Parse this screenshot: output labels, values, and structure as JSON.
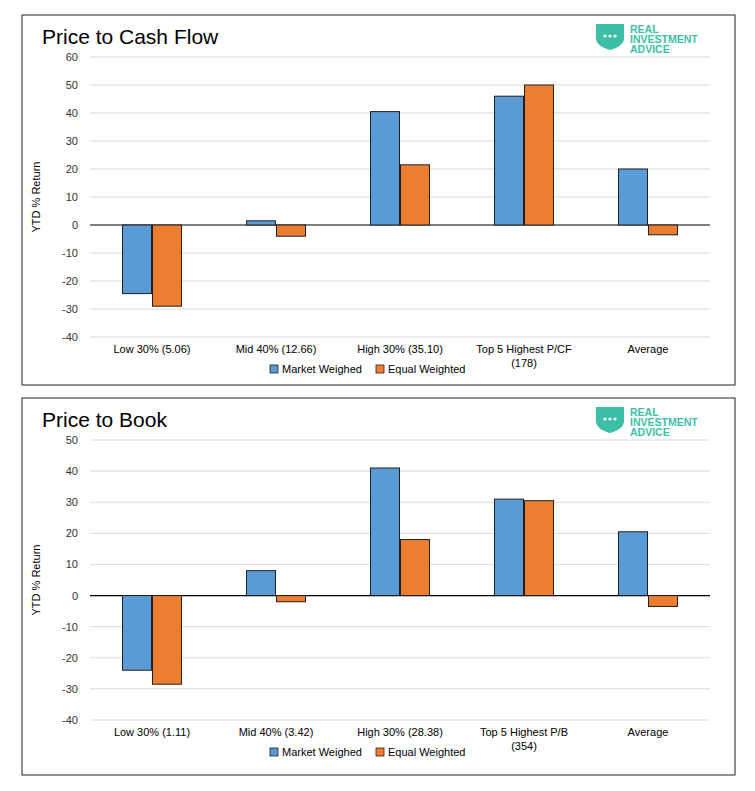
{
  "chart_data": [
    {
      "type": "bar",
      "title": "Price to Cash Flow",
      "y_label": "YTD % Return",
      "annotations": [
        "REAL",
        "INVESTMENT",
        "ADVICE"
      ],
      "categories": [
        "Low 30% (5.06)",
        "Mid 40% (12.66)",
        "High 30% (35.10)",
        "Top 5 Highest P/CF\n(178)",
        "Average"
      ],
      "series": [
        {
          "name": "Market Weighed",
          "color": "#5b9bd5",
          "values": [
            -24.5,
            1.5,
            40.5,
            46,
            20
          ]
        },
        {
          "name": "Equal Weighted",
          "color": "#ed7d31",
          "values": [
            -29,
            -4,
            21.5,
            50,
            -3.5
          ]
        }
      ],
      "ylim": [
        -40,
        60
      ],
      "yticks": [
        -40,
        -30,
        -20,
        -10,
        0,
        10,
        20,
        30,
        40,
        50,
        60
      ],
      "grid": true,
      "legend": "bottom"
    },
    {
      "type": "bar",
      "title": "Price to Book",
      "y_label": "YTD % Return",
      "annotations": [
        "REAL",
        "INVESTMENT",
        "ADVICE"
      ],
      "categories": [
        "Low 30% (1.11)",
        "Mid 40% (3.42)",
        "High 30% (28.38)",
        "Top 5 Highest P/B\n(354)",
        "Average"
      ],
      "series": [
        {
          "name": "Market Weighed",
          "color": "#5b9bd5",
          "values": [
            -24,
            8,
            41,
            31,
            20.5
          ]
        },
        {
          "name": "Equal Weighted",
          "color": "#ed7d31",
          "values": [
            -28.5,
            -2,
            18,
            30.5,
            -3.5
          ]
        }
      ],
      "ylim": [
        -40,
        50
      ],
      "yticks": [
        -40,
        -30,
        -20,
        -10,
        0,
        10,
        20,
        30,
        40,
        50
      ],
      "grid": true,
      "legend": "bottom"
    }
  ]
}
